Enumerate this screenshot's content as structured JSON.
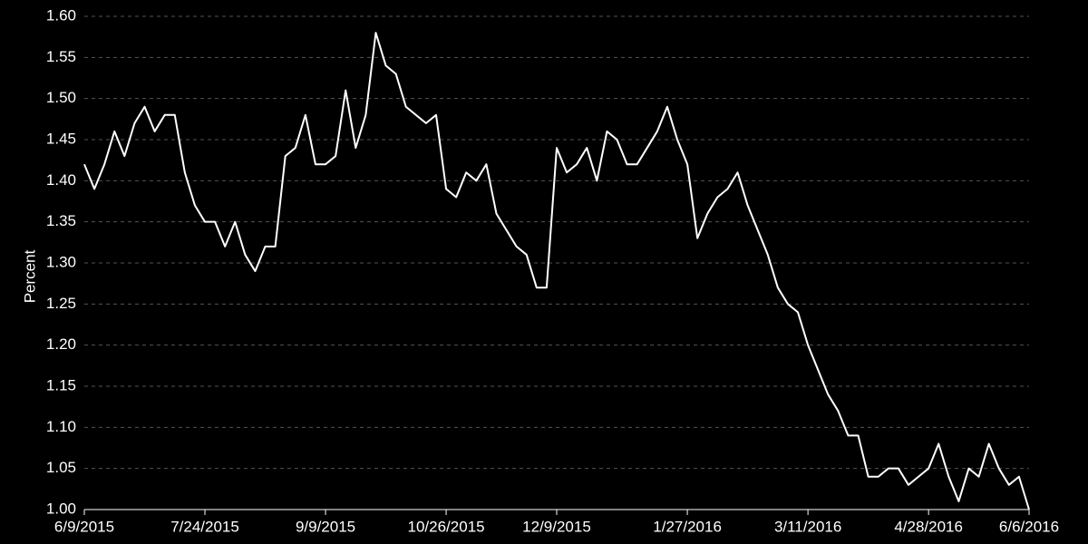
{
  "chart_data": {
    "type": "line",
    "y_label": "Percent",
    "categories": [
      "6/9/2015",
      null,
      null,
      null,
      null,
      null,
      null,
      null,
      null,
      null,
      null,
      null,
      "7/24/2015",
      null,
      null,
      null,
      null,
      null,
      null,
      null,
      null,
      null,
      null,
      null,
      "9/9/2015",
      null,
      null,
      null,
      null,
      null,
      null,
      null,
      null,
      null,
      null,
      null,
      "10/26/2015",
      null,
      null,
      null,
      null,
      null,
      null,
      null,
      null,
      null,
      null,
      "12/9/2015",
      null,
      null,
      null,
      null,
      null,
      null,
      null,
      null,
      null,
      null,
      null,
      null,
      "1/27/2016",
      null,
      null,
      null,
      null,
      null,
      null,
      null,
      null,
      null,
      null,
      null,
      "3/11/2016",
      null,
      null,
      null,
      null,
      null,
      null,
      null,
      null,
      null,
      null,
      null,
      "4/28/2016",
      null,
      null,
      null,
      null,
      null,
      null,
      null,
      null,
      null,
      "6/6/2016"
    ],
    "series": [
      {
        "name": "Percent",
        "color": "#ffffff",
        "values": [
          1.42,
          1.39,
          1.42,
          1.46,
          1.43,
          1.47,
          1.49,
          1.46,
          1.48,
          1.48,
          1.41,
          1.37,
          1.35,
          1.35,
          1.32,
          1.35,
          1.31,
          1.29,
          1.32,
          1.32,
          1.43,
          1.44,
          1.48,
          1.42,
          1.42,
          1.43,
          1.51,
          1.44,
          1.48,
          1.58,
          1.54,
          1.53,
          1.49,
          1.48,
          1.47,
          1.48,
          1.39,
          1.38,
          1.41,
          1.4,
          1.42,
          1.36,
          1.34,
          1.32,
          1.31,
          1.27,
          1.27,
          1.44,
          1.41,
          1.42,
          1.44,
          1.4,
          1.46,
          1.45,
          1.42,
          1.42,
          1.44,
          1.46,
          1.49,
          1.45,
          1.42,
          1.33,
          1.36,
          1.38,
          1.39,
          1.41,
          1.37,
          1.34,
          1.31,
          1.27,
          1.25,
          1.24,
          1.2,
          1.17,
          1.14,
          1.12,
          1.09,
          1.09,
          1.04,
          1.04,
          1.05,
          1.05,
          1.03,
          1.04,
          1.05,
          1.08,
          1.04,
          1.01,
          1.05,
          1.04,
          1.08,
          1.05,
          1.03,
          1.04,
          1.0
        ]
      }
    ],
    "ylim": [
      1.0,
      1.6
    ],
    "yticks": [
      {
        "value": 1.0,
        "label": "1.00"
      },
      {
        "value": 1.05,
        "label": "1.05"
      },
      {
        "value": 1.1,
        "label": "1.10"
      },
      {
        "value": 1.15,
        "label": "1.15"
      },
      {
        "value": 1.2,
        "label": "1.20"
      },
      {
        "value": 1.25,
        "label": "1.25"
      },
      {
        "value": 1.3,
        "label": "1.30"
      },
      {
        "value": 1.35,
        "label": "1.35"
      },
      {
        "value": 1.4,
        "label": "1.40"
      },
      {
        "value": 1.45,
        "label": "1.45"
      },
      {
        "value": 1.5,
        "label": "1.50"
      },
      {
        "value": 1.55,
        "label": "1.55"
      },
      {
        "value": 1.6,
        "label": "1.60"
      }
    ],
    "grid": true
  }
}
